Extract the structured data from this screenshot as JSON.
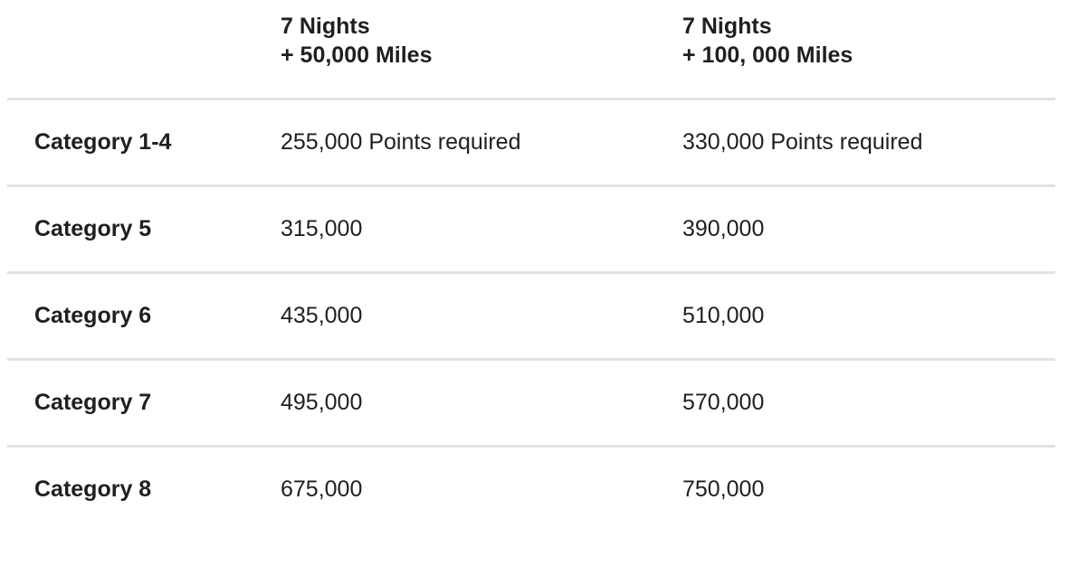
{
  "table": {
    "header": [
      [
        "7 Nights",
        "+ 50,000 Miles"
      ],
      [
        "7 Nights",
        "+ 100, 000 Miles"
      ]
    ],
    "rows": [
      {
        "label": "Category 1-4",
        "cells": [
          "255,000 Points required",
          "330,000 Points required"
        ]
      },
      {
        "label": "Category 5",
        "cells": [
          "315,000",
          "390,000"
        ]
      },
      {
        "label": "Category 6",
        "cells": [
          "435,000",
          "510,000"
        ]
      },
      {
        "label": "Category 7",
        "cells": [
          "495,000",
          "570,000"
        ]
      },
      {
        "label": "Category 8",
        "cells": [
          "675,000",
          "750,000"
        ]
      }
    ]
  }
}
